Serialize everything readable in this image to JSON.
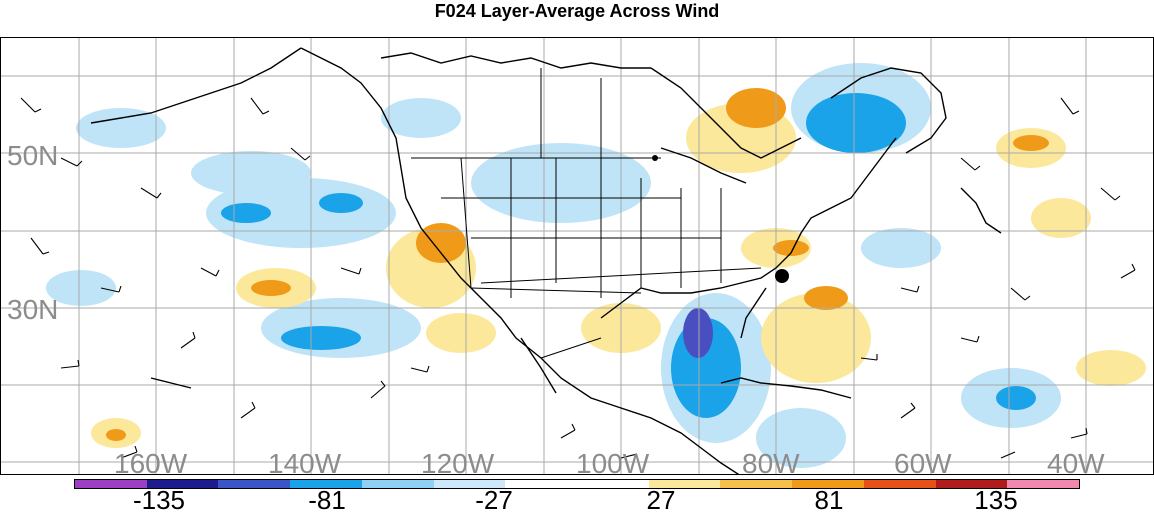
{
  "title": "F024 Layer-Average Across Wind",
  "lat_labels": [
    "50N",
    "30N"
  ],
  "lon_labels": [
    "160W",
    "140W",
    "120W",
    "100W",
    "80W",
    "60W",
    "40W"
  ],
  "colorbar": {
    "colors": [
      "#9b3fc4",
      "#1c1c8f",
      "#3a55c8",
      "#1aa3e8",
      "#8fd0f5",
      "#cde9f9",
      "#ffffff",
      "#ffffff",
      "#fbe89a",
      "#f4c24a",
      "#f09a1a",
      "#e8501a",
      "#b01c1c",
      "#f088b0"
    ],
    "labels": [
      "-135",
      "-81",
      "-27",
      "27",
      "81",
      "135"
    ]
  },
  "legend_colors": {
    "water": "#ffffff",
    "blue_light": "#bfe3f7",
    "blue_mid": "#1aa3e8",
    "blue_dark": "#4a4fc0",
    "yellow": "#fbe89a",
    "orange": "#f09a1a",
    "marker": "#000000"
  }
}
